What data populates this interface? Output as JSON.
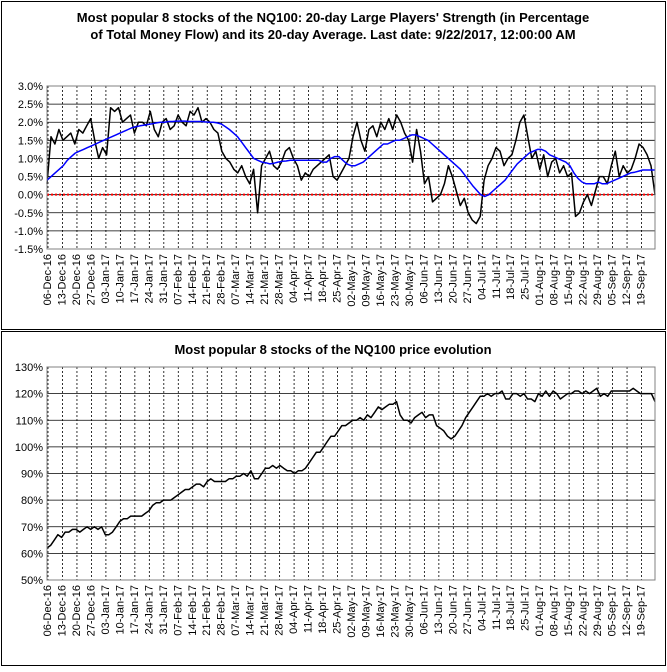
{
  "chart_data": [
    {
      "type": "line",
      "title_lines": [
        "Most popular 8 stocks of the NQ100: 20-day Large Players' Strength (in Percentage",
        "of Total Money Flow) and its 20-day Average. Last date: 9/22/2017, 12:00:00 AM"
      ],
      "y_tick_labels": [
        "3.0%",
        "2.5%",
        "2.0%",
        "1.5%",
        "1.0%",
        "0.5%",
        "0.0%",
        "-0.5%",
        "-1.0%",
        "-1.5%"
      ],
      "ylim": [
        -1.5,
        3.0
      ],
      "x_tick_labels": [
        "06-Dec-16",
        "13-Dec-16",
        "20-Dec-16",
        "27-Dec-16",
        "03-Jan-17",
        "10-Jan-17",
        "17-Jan-17",
        "24-Jan-17",
        "31-Jan-17",
        "07-Feb-17",
        "14-Feb-17",
        "21-Feb-17",
        "28-Feb-17",
        "07-Mar-17",
        "14-Mar-17",
        "21-Mar-17",
        "28-Mar-17",
        "04-Apr-17",
        "11-Apr-17",
        "18-Apr-17",
        "25-Apr-17",
        "02-May-17",
        "09-May-17",
        "16-May-17",
        "23-May-17",
        "30-May-17",
        "06-Jun-17",
        "13-Jun-17",
        "20-Jun-17",
        "27-Jun-17",
        "04-Jul-17",
        "11-Jul-17",
        "18-Jul-17",
        "25-Jul-17",
        "01-Aug-17",
        "08-Aug-17",
        "15-Aug-17",
        "22-Aug-17",
        "29-Aug-17",
        "05-Sep-17",
        "12-Sep-17",
        "19-Sep-17"
      ],
      "grid": true,
      "series": [
        {
          "role": "strength",
          "color": "#000000",
          "values": [
            0.3,
            1.6,
            1.4,
            1.8,
            1.5,
            1.6,
            1.7,
            1.4,
            1.8,
            1.7,
            1.9,
            2.1,
            1.5,
            1.0,
            1.3,
            1.1,
            2.4,
            2.3,
            2.4,
            2.0,
            2.1,
            2.2,
            1.7,
            2.0,
            2.0,
            1.9,
            2.3,
            1.8,
            1.6,
            2.0,
            2.1,
            1.8,
            1.9,
            2.2,
            2.0,
            1.9,
            2.3,
            2.2,
            2.4,
            2.0,
            2.1,
            2.0,
            1.8,
            1.7,
            1.2,
            1.0,
            0.9,
            0.7,
            0.6,
            0.8,
            0.5,
            0.3,
            0.7,
            -0.5,
            0.8,
            1.0,
            1.2,
            0.8,
            0.7,
            0.9,
            1.2,
            1.3,
            1.0,
            0.8,
            0.4,
            0.6,
            0.5,
            0.7,
            0.8,
            0.9,
            1.0,
            1.1,
            0.5,
            0.4,
            0.6,
            0.8,
            1.0,
            1.6,
            2.0,
            1.5,
            1.2,
            1.8,
            1.9,
            1.6,
            2.0,
            1.8,
            2.1,
            1.8,
            2.2,
            2.0,
            1.7,
            1.5,
            0.9,
            1.8,
            1.2,
            0.3,
            0.5,
            -0.2,
            -0.1,
            0.0,
            0.3,
            0.8,
            0.5,
            0.1,
            -0.3,
            -0.1,
            -0.5,
            -0.7,
            -0.8,
            -0.6,
            0.4,
            0.8,
            1.0,
            1.3,
            1.2,
            0.8,
            1.0,
            1.1,
            1.5,
            2.0,
            2.2,
            1.6,
            1.0,
            1.2,
            0.7,
            1.1,
            0.5,
            0.9,
            1.0,
            0.6,
            0.8,
            0.5,
            0.6,
            -0.6,
            -0.5,
            -0.2,
            0.0,
            -0.3,
            0.1,
            0.5,
            0.5,
            0.3,
            0.8,
            1.2,
            0.5,
            0.8,
            0.6,
            0.7,
            1.0,
            1.4,
            1.3,
            1.1,
            0.8,
            0.0
          ]
        },
        {
          "role": "average",
          "color": "#0000ff",
          "values": [
            0.4,
            0.5,
            0.6,
            0.7,
            0.8,
            0.95,
            1.05,
            1.15,
            1.2,
            1.25,
            1.3,
            1.35,
            1.4,
            1.45,
            1.5,
            1.55,
            1.6,
            1.65,
            1.7,
            1.75,
            1.8,
            1.85,
            1.88,
            1.9,
            1.92,
            1.94,
            1.96,
            1.98,
            2.0,
            2.0,
            2.02,
            2.02,
            2.03,
            2.03,
            2.03,
            2.02,
            2.02,
            2.02,
            2.02,
            2.01,
            2.0,
            2.0,
            1.98,
            1.95,
            1.88,
            1.8,
            1.7,
            1.6,
            1.45,
            1.3,
            1.15,
            1.0,
            0.95,
            0.9,
            0.88,
            0.85,
            0.87,
            0.9,
            0.92,
            0.93,
            0.95,
            0.95,
            0.95,
            0.95,
            0.95,
            0.95,
            0.95,
            0.95,
            0.9,
            0.9,
            1.0,
            1.05,
            1.05,
            0.95,
            0.85,
            0.8,
            0.8,
            0.85,
            0.9,
            1.0,
            1.1,
            1.2,
            1.3,
            1.4,
            1.4,
            1.45,
            1.5,
            1.5,
            1.55,
            1.6,
            1.65,
            1.65,
            1.6,
            1.55,
            1.5,
            1.4,
            1.3,
            1.2,
            1.1,
            1.0,
            0.9,
            0.8,
            0.7,
            0.55,
            0.4,
            0.25,
            0.12,
            0.0,
            -0.05,
            0.0,
            0.1,
            0.2,
            0.3,
            0.4,
            0.55,
            0.7,
            0.85,
            0.95,
            1.05,
            1.15,
            1.2,
            1.25,
            1.25,
            1.2,
            1.1,
            1.05,
            1.0,
            0.95,
            0.9,
            0.8,
            0.6,
            0.45,
            0.35,
            0.3,
            0.3,
            0.3,
            0.35,
            0.3,
            0.3,
            0.35,
            0.4,
            0.45,
            0.5,
            0.55,
            0.6,
            0.62,
            0.65,
            0.68,
            0.68,
            0.68,
            0.68
          ]
        }
      ],
      "reference_line": {
        "y": 0.0,
        "color": "#ff0000",
        "style": "dotted"
      }
    },
    {
      "type": "line",
      "title": "Most popular 8 stocks of the NQ100 price evolution",
      "y_tick_labels": [
        "130%",
        "120%",
        "110%",
        "100%",
        "90%",
        "80%",
        "70%",
        "60%",
        "50%"
      ],
      "ylim": [
        50,
        130
      ],
      "x_tick_labels": [
        "06-Dec-16",
        "13-Dec-16",
        "20-Dec-16",
        "27-Dec-16",
        "03-Jan-17",
        "10-Jan-17",
        "17-Jan-17",
        "24-Jan-17",
        "31-Jan-17",
        "07-Feb-17",
        "14-Feb-17",
        "21-Feb-17",
        "28-Feb-17",
        "07-Mar-17",
        "14-Mar-17",
        "21-Mar-17",
        "28-Mar-17",
        "04-Apr-17",
        "11-Apr-17",
        "18-Apr-17",
        "25-Apr-17",
        "02-May-17",
        "09-May-17",
        "16-May-17",
        "23-May-17",
        "30-May-17",
        "06-Jun-17",
        "13-Jun-17",
        "20-Jun-17",
        "27-Jun-17",
        "04-Jul-17",
        "11-Jul-17",
        "18-Jul-17",
        "25-Jul-17",
        "01-Aug-17",
        "08-Aug-17",
        "15-Aug-17",
        "22-Aug-17",
        "29-Aug-17",
        "05-Sep-17",
        "12-Sep-17",
        "19-Sep-17"
      ],
      "grid": true,
      "series": [
        {
          "role": "price",
          "color": "#000000",
          "values": [
            62,
            63,
            65,
            67,
            66,
            68,
            68,
            69,
            69,
            68,
            69,
            70,
            69,
            70,
            69,
            70,
            67,
            67,
            68,
            70,
            72,
            73,
            73,
            74,
            74,
            74,
            74,
            75,
            76,
            78,
            79,
            79,
            80,
            80,
            80,
            81,
            82,
            83,
            84,
            84,
            85,
            86,
            86,
            85,
            87,
            88,
            87,
            87,
            87,
            87,
            88,
            88,
            89,
            89,
            90,
            89,
            91,
            88,
            88,
            90,
            92,
            92,
            93,
            92,
            93,
            92,
            91,
            91,
            90,
            91,
            91,
            92,
            94,
            96,
            98,
            98,
            100,
            102,
            104,
            104,
            106,
            108,
            108,
            109,
            110,
            110,
            111,
            110,
            112,
            111,
            113,
            115,
            114,
            115,
            116,
            116,
            117,
            112,
            110,
            110,
            109,
            111,
            112,
            113,
            111,
            112,
            112,
            108,
            107,
            106,
            104,
            103,
            104,
            106,
            108,
            111,
            113,
            115,
            117,
            119,
            119,
            120,
            119,
            120,
            120,
            121,
            118,
            118,
            120,
            120,
            119,
            120,
            118,
            118,
            117,
            120,
            119,
            121,
            119,
            121,
            120,
            118,
            119,
            120,
            120,
            121,
            121,
            120,
            121,
            120,
            121,
            122,
            119,
            120,
            119,
            121,
            121,
            121,
            121,
            121,
            121,
            122,
            121,
            120,
            120,
            120,
            120,
            117
          ]
        }
      ]
    }
  ]
}
